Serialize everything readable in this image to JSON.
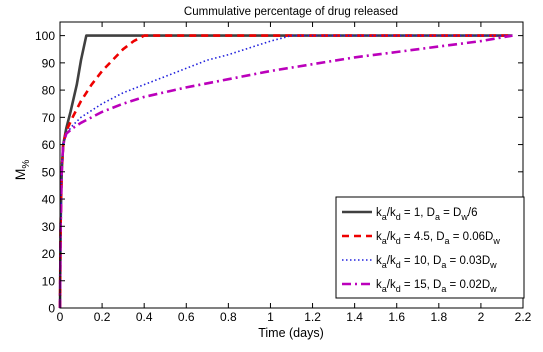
{
  "chart_data": {
    "type": "line",
    "title": "Cummulative percentage of drug released",
    "xlabel": "Time (days)",
    "ylabel": {
      "main": "M",
      "sub": "%"
    },
    "xlim": [
      0,
      2.2
    ],
    "ylim": [
      0,
      105
    ],
    "x_ticks": [
      "0",
      "0.2",
      "0.4",
      "0.6",
      "0.8",
      "1",
      "1.2",
      "1.4",
      "1.6",
      "1.8",
      "2",
      "2.2"
    ],
    "y_ticks": [
      "0",
      "10",
      "20",
      "30",
      "40",
      "50",
      "60",
      "70",
      "80",
      "90",
      "100"
    ],
    "grid": false,
    "legend_position": "bottom-right",
    "series": [
      {
        "name": [
          [
            "k",
            ""
          ],
          [
            "a",
            "sub"
          ],
          [
            "/k",
            ""
          ],
          [
            "d",
            "sub"
          ],
          [
            " = 1, D",
            ""
          ],
          [
            "a",
            "sub"
          ],
          [
            " = D",
            ""
          ],
          [
            "w",
            "sub"
          ],
          [
            "/6",
            ""
          ]
        ],
        "color": "#404040",
        "dash": "solid",
        "width": 2.6,
        "points": [
          [
            0,
            0
          ],
          [
            0.003,
            30
          ],
          [
            0.008,
            50
          ],
          [
            0.015,
            60
          ],
          [
            0.03,
            66
          ],
          [
            0.05,
            72
          ],
          [
            0.08,
            82
          ],
          [
            0.1,
            91
          ],
          [
            0.125,
            100
          ],
          [
            2.15,
            100
          ]
        ]
      },
      {
        "name": [
          [
            "k",
            ""
          ],
          [
            "a",
            "sub"
          ],
          [
            "/k",
            ""
          ],
          [
            "d",
            "sub"
          ],
          [
            " = 4.5, D",
            ""
          ],
          [
            "a",
            "sub"
          ],
          [
            " = 0.06D",
            ""
          ],
          [
            "w",
            "sub"
          ]
        ],
        "color": "#ee0000",
        "dash": "7,5",
        "width": 2.6,
        "points": [
          [
            0,
            0
          ],
          [
            0.003,
            30
          ],
          [
            0.008,
            50
          ],
          [
            0.015,
            60
          ],
          [
            0.03,
            65
          ],
          [
            0.06,
            70
          ],
          [
            0.1,
            76
          ],
          [
            0.15,
            82
          ],
          [
            0.2,
            87
          ],
          [
            0.25,
            91
          ],
          [
            0.3,
            95
          ],
          [
            0.35,
            98
          ],
          [
            0.4,
            100
          ],
          [
            2.15,
            100
          ]
        ]
      },
      {
        "name": [
          [
            "k",
            ""
          ],
          [
            "a",
            "sub"
          ],
          [
            "/k",
            ""
          ],
          [
            "d",
            "sub"
          ],
          [
            " = 10, D",
            ""
          ],
          [
            "a",
            "sub"
          ],
          [
            " = 0.03D",
            ""
          ],
          [
            "w",
            "sub"
          ]
        ],
        "color": "#2020dd",
        "dash": "1.5,2.5",
        "width": 1.6,
        "points": [
          [
            0,
            0
          ],
          [
            0.003,
            30
          ],
          [
            0.008,
            50
          ],
          [
            0.015,
            60
          ],
          [
            0.03,
            64
          ],
          [
            0.06,
            67
          ],
          [
            0.1,
            70
          ],
          [
            0.2,
            75
          ],
          [
            0.3,
            79
          ],
          [
            0.4,
            82
          ],
          [
            0.5,
            85
          ],
          [
            0.6,
            88
          ],
          [
            0.7,
            91
          ],
          [
            0.8,
            93
          ],
          [
            0.9,
            95.5
          ],
          [
            1.0,
            98
          ],
          [
            1.1,
            100
          ],
          [
            2.15,
            100
          ]
        ]
      },
      {
        "name": [
          [
            "k",
            ""
          ],
          [
            "a",
            "sub"
          ],
          [
            "/k",
            ""
          ],
          [
            "d",
            "sub"
          ],
          [
            " = 15, D",
            ""
          ],
          [
            "a",
            "sub"
          ],
          [
            " = 0.02D",
            ""
          ],
          [
            "w",
            "sub"
          ]
        ],
        "color": "#bb00bb",
        "dash": "9,4,2,4",
        "width": 2.6,
        "points": [
          [
            0,
            0
          ],
          [
            0.003,
            30
          ],
          [
            0.008,
            50
          ],
          [
            0.015,
            60
          ],
          [
            0.03,
            64
          ],
          [
            0.06,
            66
          ],
          [
            0.1,
            68
          ],
          [
            0.2,
            72
          ],
          [
            0.3,
            75
          ],
          [
            0.4,
            77.5
          ],
          [
            0.6,
            81
          ],
          [
            0.8,
            84
          ],
          [
            1.0,
            87
          ],
          [
            1.2,
            89.5
          ],
          [
            1.4,
            92
          ],
          [
            1.6,
            94
          ],
          [
            1.8,
            96
          ],
          [
            2.0,
            98
          ],
          [
            2.15,
            100
          ]
        ]
      }
    ]
  }
}
